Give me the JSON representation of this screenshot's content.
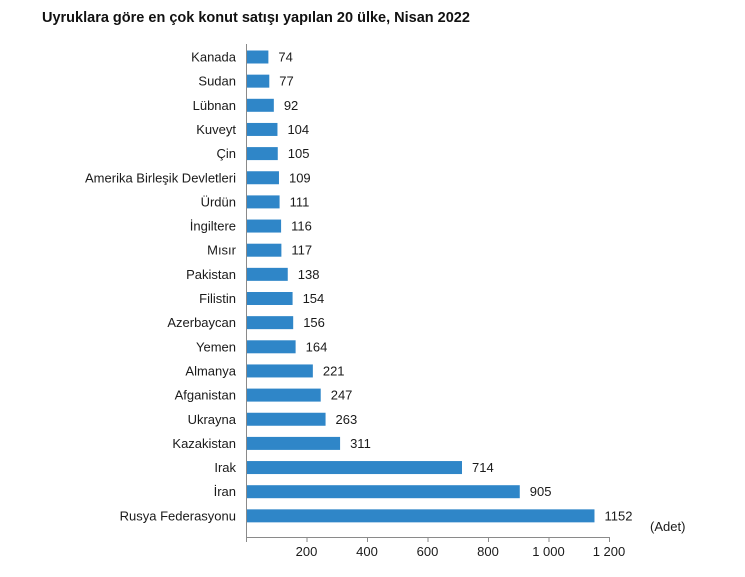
{
  "chart_data": {
    "type": "bar",
    "orientation": "horizontal",
    "title": "Uyruklara göre en çok konut satışı yapılan 20 ülke, Nisan 2022",
    "unit_label": "(Adet)",
    "categories": [
      "Kanada",
      "Sudan",
      "Lübnan",
      "Kuveyt",
      "Çin",
      "Amerika Birleşik Devletleri",
      "Ürdün",
      "İngiltere",
      "Mısır",
      "Pakistan",
      "Filistin",
      "Azerbaycan",
      "Yemen",
      "Almanya",
      "Afganistan",
      "Ukrayna",
      "Kazakistan",
      "Irak",
      "İran",
      "Rusya Federasyonu"
    ],
    "values": [
      74,
      77,
      92,
      104,
      105,
      109,
      111,
      116,
      117,
      138,
      154,
      156,
      164,
      221,
      247,
      263,
      311,
      714,
      905,
      1152
    ],
    "xlim": [
      0,
      1200
    ],
    "x_ticks": [
      200,
      400,
      600,
      800,
      1000,
      1200
    ],
    "x_tick_labels": [
      "200",
      "400",
      "600",
      "800",
      "1 000",
      "1 200"
    ],
    "bar_color": "#2f86c8",
    "grid": false,
    "legend": "none"
  }
}
